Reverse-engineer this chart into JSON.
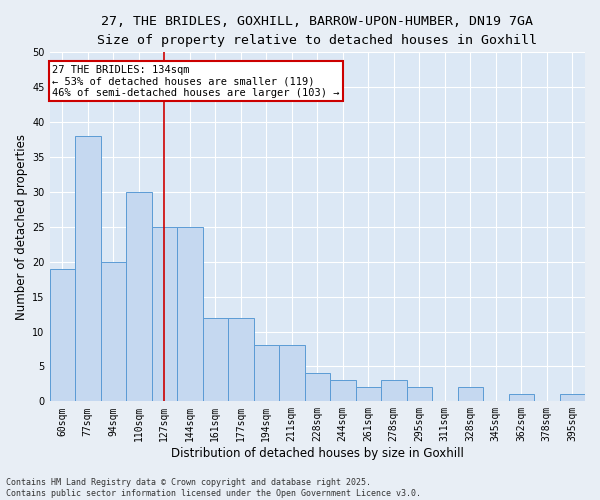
{
  "title_line1": "27, THE BRIDLES, GOXHILL, BARROW-UPON-HUMBER, DN19 7GA",
  "title_line2": "Size of property relative to detached houses in Goxhill",
  "xlabel": "Distribution of detached houses by size in Goxhill",
  "ylabel": "Number of detached properties",
  "categories": [
    "60sqm",
    "77sqm",
    "94sqm",
    "110sqm",
    "127sqm",
    "144sqm",
    "161sqm",
    "177sqm",
    "194sqm",
    "211sqm",
    "228sqm",
    "244sqm",
    "261sqm",
    "278sqm",
    "295sqm",
    "311sqm",
    "328sqm",
    "345sqm",
    "362sqm",
    "378sqm",
    "395sqm"
  ],
  "values": [
    19,
    38,
    20,
    30,
    25,
    25,
    12,
    12,
    8,
    8,
    4,
    3,
    2,
    3,
    2,
    0,
    2,
    0,
    1,
    0,
    1
  ],
  "bar_color": "#c5d8f0",
  "bar_edge_color": "#5b9bd5",
  "red_line_x": 4.0,
  "ylim": [
    0,
    50
  ],
  "yticks": [
    0,
    5,
    10,
    15,
    20,
    25,
    30,
    35,
    40,
    45,
    50
  ],
  "annotation_text": "27 THE BRIDLES: 134sqm\n← 53% of detached houses are smaller (119)\n46% of semi-detached houses are larger (103) →",
  "annotation_box_color": "#ffffff",
  "annotation_box_edge_color": "#cc0000",
  "fig_background_color": "#e8eef5",
  "plot_background_color": "#dce8f5",
  "footer_text": "Contains HM Land Registry data © Crown copyright and database right 2025.\nContains public sector information licensed under the Open Government Licence v3.0.",
  "grid_color": "#ffffff",
  "title_fontsize": 9.5,
  "subtitle_fontsize": 9,
  "axis_label_fontsize": 8.5,
  "tick_fontsize": 7,
  "ann_fontsize": 7.5,
  "footer_fontsize": 6
}
